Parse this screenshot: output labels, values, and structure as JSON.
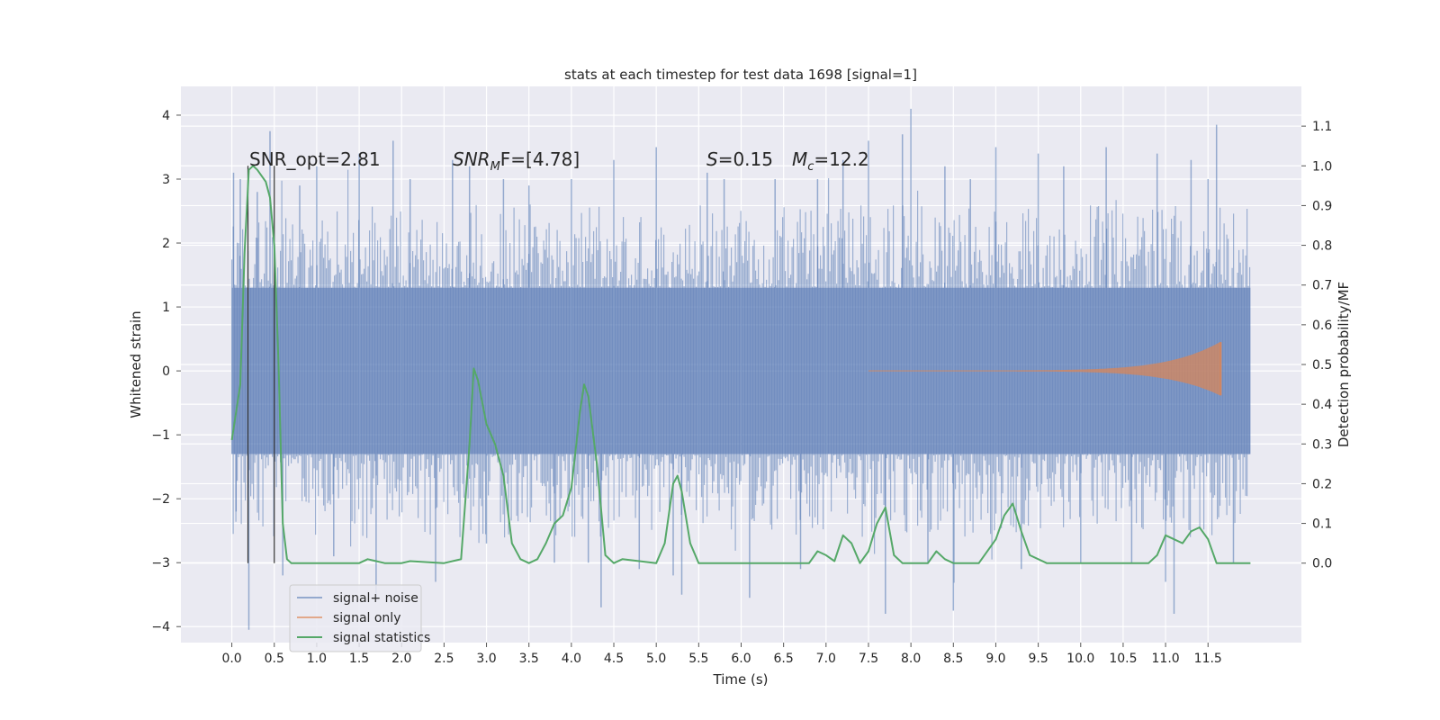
{
  "chart_data": {
    "type": "line",
    "title": "stats at each timestep for test data 1698 [signal=1]",
    "xlabel": "Time (s)",
    "ylabel": "Whitened strain",
    "ylabel_right": "Detection probability/MF",
    "xlim": [
      -0.6,
      12.6
    ],
    "ylim": [
      -4.25,
      4.45
    ],
    "ylim_right": [
      -0.2,
      1.2
    ],
    "x_ticks": [
      "0.0",
      "0.5",
      "1.0",
      "1.5",
      "2.0",
      "2.5",
      "3.0",
      "3.5",
      "4.0",
      "4.5",
      "5.0",
      "5.5",
      "6.0",
      "6.5",
      "7.0",
      "7.5",
      "8.0",
      "8.5",
      "9.0",
      "9.5",
      "10.0",
      "10.5",
      "11.0",
      "11.5"
    ],
    "y_ticks": [
      "−4",
      "−3",
      "−2",
      "−1",
      "0",
      "1",
      "2",
      "3",
      "4"
    ],
    "y_ticks_right": [
      "0.0",
      "0.1",
      "0.2",
      "0.3",
      "0.4",
      "0.5",
      "0.6",
      "0.7",
      "0.8",
      "0.9",
      "1.0",
      "1.1"
    ],
    "grid": true,
    "background": "#eaeaf2",
    "legend": {
      "placement": "lower-left",
      "entries": [
        "signal+ noise",
        "signal only",
        "signal statistics"
      ]
    },
    "annotations": {
      "snr_opt": "SNR_opt=2.81",
      "snr_mf_main": "SNR",
      "snr_mf_sub": "M",
      "snr_mf_rest": "F=[4.78]",
      "s_main": "S",
      "s_rest": "=0.15",
      "mc_main": "M",
      "mc_sub": "c",
      "mc_rest": "=12.2"
    },
    "vertical_lines_x": [
      0.19,
      0.5
    ],
    "series": [
      {
        "name": "signal+ noise",
        "color": "#4c72b0",
        "x_range": [
          0,
          12
        ],
        "envelope_core": 1.3,
        "min": -4.05,
        "max": 4.1,
        "spikes": [
          [
            0.02,
            3.1
          ],
          [
            0.05,
            -2.2
          ],
          [
            0.1,
            3.0
          ],
          [
            0.2,
            -4.05
          ],
          [
            0.3,
            2.8
          ],
          [
            0.45,
            3.75
          ],
          [
            0.6,
            -3.2
          ],
          [
            0.8,
            2.9
          ],
          [
            1.0,
            3.2
          ],
          [
            1.2,
            -2.9
          ],
          [
            1.5,
            3.4
          ],
          [
            1.7,
            -3.6
          ],
          [
            1.9,
            3.6
          ],
          [
            2.1,
            3.0
          ],
          [
            2.4,
            -3.3
          ],
          [
            2.6,
            3.3
          ],
          [
            2.8,
            3.2
          ],
          [
            3.0,
            -2.7
          ],
          [
            3.2,
            3.0
          ],
          [
            3.5,
            2.9
          ],
          [
            3.8,
            -3.0
          ],
          [
            4.0,
            3.0
          ],
          [
            4.2,
            -3.0
          ],
          [
            4.35,
            -3.7
          ],
          [
            4.5,
            3.3
          ],
          [
            4.8,
            -3.1
          ],
          [
            5.0,
            3.5
          ],
          [
            5.2,
            -3.2
          ],
          [
            5.3,
            -3.5
          ],
          [
            5.6,
            3.1
          ],
          [
            5.8,
            3.0
          ],
          [
            6.1,
            -3.55
          ],
          [
            6.4,
            3.0
          ],
          [
            6.7,
            -3.1
          ],
          [
            6.9,
            3.0
          ],
          [
            7.2,
            3.3
          ],
          [
            7.5,
            3.6
          ],
          [
            7.7,
            -3.8
          ],
          [
            7.9,
            3.7
          ],
          [
            8.0,
            4.1
          ],
          [
            8.2,
            -3.0
          ],
          [
            8.4,
            3.2
          ],
          [
            8.5,
            -3.75
          ],
          [
            8.7,
            3.0
          ],
          [
            9.0,
            3.5
          ],
          [
            9.3,
            -3.1
          ],
          [
            9.5,
            3.4
          ],
          [
            9.8,
            3.2
          ],
          [
            10.0,
            -3.0
          ],
          [
            10.3,
            3.5
          ],
          [
            10.6,
            -3.0
          ],
          [
            10.9,
            3.4
          ],
          [
            11.0,
            -3.3
          ],
          [
            11.1,
            -3.8
          ],
          [
            11.3,
            3.3
          ],
          [
            11.5,
            3.0
          ],
          [
            11.6,
            3.85
          ],
          [
            11.8,
            -3.0
          ]
        ]
      },
      {
        "name": "signal only",
        "color": "#dd8452",
        "x_range": [
          7.5,
          11.65
        ],
        "peak_amplitude": 0.45
      },
      {
        "name": "signal statistics",
        "color": "#55a868",
        "axis": "right",
        "x": [
          0.0,
          0.1,
          0.15,
          0.2,
          0.25,
          0.3,
          0.4,
          0.45,
          0.5,
          0.55,
          0.6,
          0.65,
          0.7,
          1.0,
          1.5,
          1.6,
          1.7,
          1.8,
          2.0,
          2.1,
          2.5,
          2.7,
          2.8,
          2.85,
          2.9,
          3.0,
          3.1,
          3.2,
          3.3,
          3.4,
          3.5,
          3.6,
          3.7,
          3.8,
          3.9,
          4.0,
          4.1,
          4.15,
          4.2,
          4.3,
          4.4,
          4.5,
          4.6,
          4.8,
          5.0,
          5.1,
          5.2,
          5.25,
          5.3,
          5.4,
          5.5,
          5.6,
          6.0,
          6.5,
          6.8,
          6.9,
          7.0,
          7.1,
          7.2,
          7.3,
          7.4,
          7.5,
          7.6,
          7.7,
          7.8,
          7.9,
          8.0,
          8.2,
          8.3,
          8.4,
          8.5,
          8.6,
          8.8,
          9.0,
          9.1,
          9.2,
          9.3,
          9.4,
          9.6,
          10.0,
          10.5,
          10.8,
          10.9,
          11.0,
          11.1,
          11.2,
          11.3,
          11.4,
          11.5,
          11.6,
          11.8,
          12.0
        ],
        "y": [
          0.31,
          0.45,
          0.78,
          0.99,
          1.0,
          0.99,
          0.96,
          0.92,
          0.8,
          0.5,
          0.1,
          0.01,
          0.0,
          0.0,
          0.0,
          0.01,
          0.005,
          0.0,
          0.0,
          0.005,
          0.0,
          0.01,
          0.3,
          0.49,
          0.46,
          0.35,
          0.3,
          0.22,
          0.05,
          0.01,
          0.0,
          0.01,
          0.05,
          0.1,
          0.12,
          0.19,
          0.38,
          0.45,
          0.42,
          0.25,
          0.02,
          0.0,
          0.01,
          0.005,
          0.0,
          0.05,
          0.2,
          0.22,
          0.18,
          0.05,
          0.0,
          0.0,
          0.0,
          0.0,
          0.0,
          0.03,
          0.02,
          0.005,
          0.07,
          0.05,
          0.0,
          0.03,
          0.1,
          0.14,
          0.02,
          0.0,
          0.0,
          0.0,
          0.03,
          0.01,
          0.0,
          0.0,
          0.0,
          0.06,
          0.12,
          0.15,
          0.08,
          0.02,
          0.0,
          0.0,
          0.0,
          0.0,
          0.02,
          0.07,
          0.06,
          0.05,
          0.08,
          0.09,
          0.06,
          0.0,
          0.0,
          0.0
        ]
      }
    ]
  }
}
